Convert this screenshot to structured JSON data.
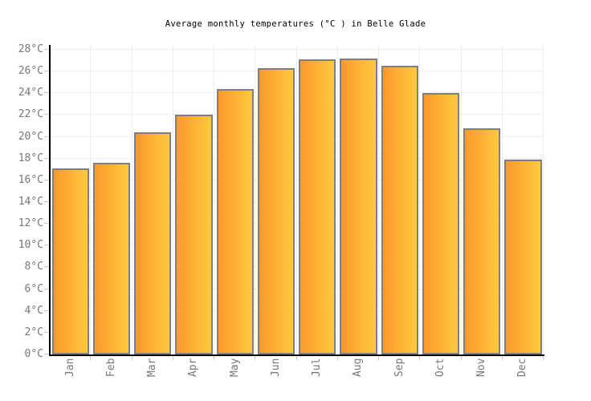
{
  "title": "Average monthly temperatures (°C ) in Belle Glade",
  "chart_data": {
    "type": "bar",
    "title": "Average monthly temperatures (°C ) in Belle Glade",
    "categories": [
      "Jan",
      "Feb",
      "Mar",
      "Apr",
      "May",
      "Jun",
      "Jul",
      "Aug",
      "Sep",
      "Oct",
      "Nov",
      "Dec"
    ],
    "values": [
      17.1,
      17.6,
      20.4,
      22.0,
      24.4,
      26.3,
      27.1,
      27.2,
      26.5,
      24.0,
      20.8,
      17.9
    ],
    "xlabel": "",
    "ylabel": "",
    "ylim": [
      0,
      28
    ],
    "ytick_step": 2,
    "ytick_suffix": "°C",
    "grid": true,
    "legend": "none",
    "colors": {
      "bar_gradient_left": "#fc992d",
      "bar_gradient_right": "#ffc93e",
      "bar_border": "#7f7f7f",
      "grid_line": "#ededed",
      "tick_mark": "#cccccc",
      "axis_line": "#000000",
      "axis_label": "#777777",
      "title_text": "#000000",
      "background": "#ffffff"
    }
  }
}
